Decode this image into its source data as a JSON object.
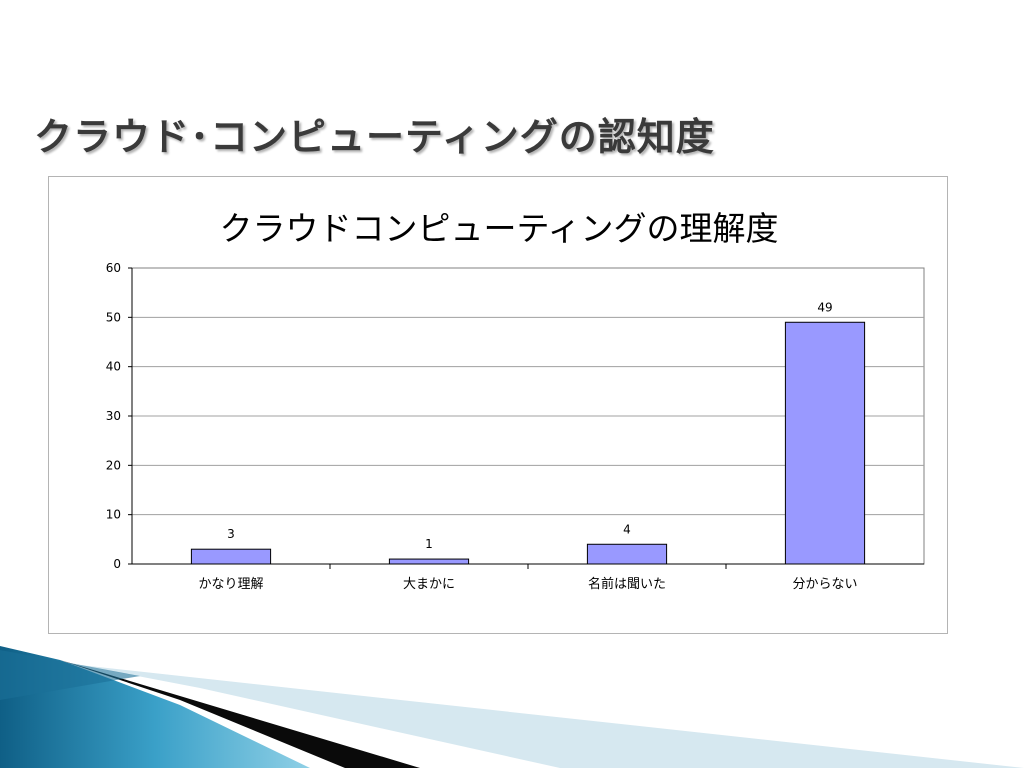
{
  "slide": {
    "title": "クラウド･コンピューティングの認知度"
  },
  "colors": {
    "bar_fill": "#9999ff",
    "bar_stroke": "#000000",
    "grid": "#a0a0a0",
    "title_text": "#3a3a3a",
    "deco_blue": "#2e86b0",
    "deco_light": "#cfe4ee"
  },
  "chart_data": {
    "type": "bar",
    "title": "クラウドコンピューティングの理解度",
    "xlabel": "",
    "ylabel": "",
    "categories": [
      "かなり理解",
      "大まかに",
      "名前は聞いた",
      "分からない"
    ],
    "values": [
      3,
      1,
      4,
      49
    ],
    "data_labels": [
      "3",
      "1",
      "4",
      "49"
    ],
    "ylim": [
      0,
      60
    ],
    "yticks": [
      "0",
      "10",
      "20",
      "30",
      "40",
      "50",
      "60"
    ],
    "grid": true,
    "legend": "none"
  }
}
